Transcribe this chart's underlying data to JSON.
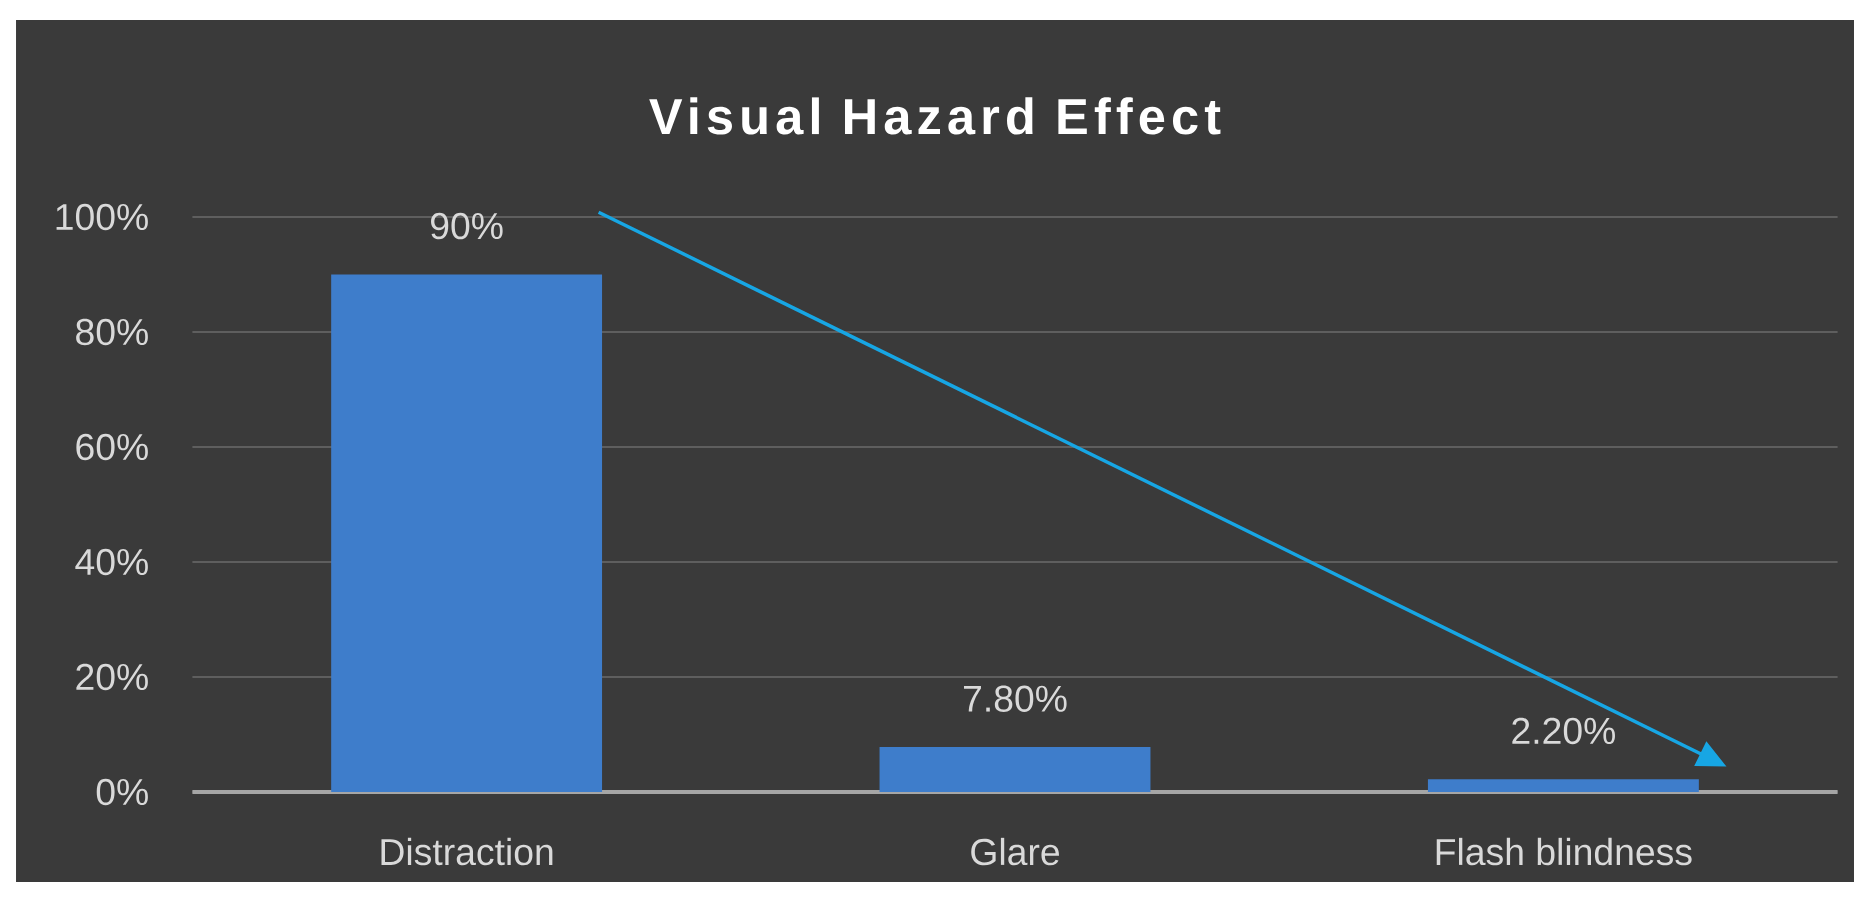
{
  "chart_data": {
    "type": "bar",
    "title": "Visual Hazard Effect",
    "categories": [
      "Distraction",
      "Glare",
      "Flash blindness"
    ],
    "values": [
      90,
      7.8,
      2.2
    ],
    "value_labels": [
      "90%",
      "7.80%",
      "2.20%"
    ],
    "color": "#3e7dcb",
    "ylim": [
      0,
      100
    ],
    "yticks": [
      {
        "value": 0,
        "label": "0%"
      },
      {
        "value": 20,
        "label": "20%"
      },
      {
        "value": 40,
        "label": "40%"
      },
      {
        "value": 60,
        "label": "60%"
      },
      {
        "value": 80,
        "label": "80%"
      },
      {
        "value": 100,
        "label": "100%"
      }
    ],
    "grid": "y"
  }
}
